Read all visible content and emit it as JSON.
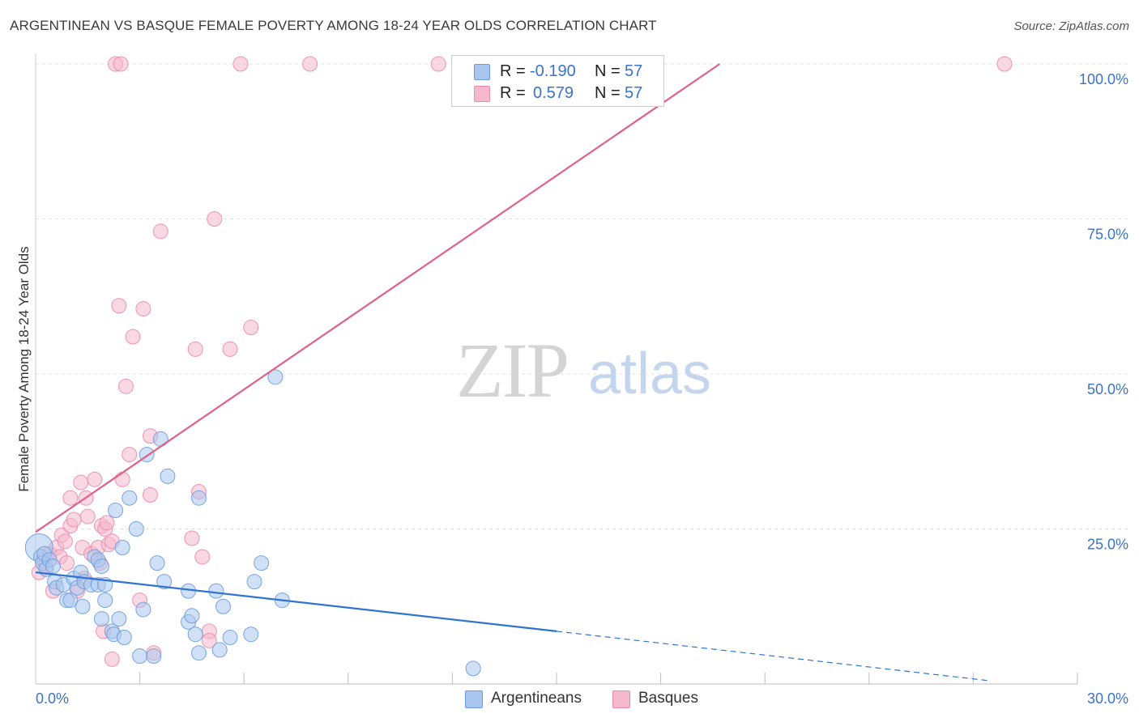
{
  "title": "ARGENTINEAN VS BASQUE FEMALE POVERTY AMONG 18-24 YEAR OLDS CORRELATION CHART",
  "source": "Source: ZipAtlas.com",
  "watermark": {
    "zip": "ZIP",
    "atlas": "atlas"
  },
  "legend": {
    "rows": [
      {
        "r_label": "R =",
        "r_value": "-0.190",
        "n_label": "N =",
        "n_value": "57",
        "color": "#a9c6ef"
      },
      {
        "r_label": "R =",
        "r_value": "0.579",
        "n_label": "N =",
        "n_value": "57",
        "color": "#f5b8cc"
      }
    ]
  },
  "bottom_legend": [
    {
      "label": "Argentineans",
      "color": "#a9c6ef"
    },
    {
      "label": "Basques",
      "color": "#f5b8cc"
    }
  ],
  "colors": {
    "argentineans_fill": "#a9c6ef",
    "argentineans_stroke": "#6a9be0",
    "argentineans_line": "#2f74d0",
    "basques_fill": "#f5b8cc",
    "basques_stroke": "#ec8aaa",
    "basques_line": "#e0608a",
    "axis_label": "#3a73c8",
    "grid": "#e3e3e3"
  },
  "chart_data": {
    "type": "scatter",
    "title": "ARGENTINEAN VS BASQUE FEMALE POVERTY AMONG 18-24 YEAR OLDS CORRELATION CHART",
    "xlabel": "",
    "ylabel": "Female Poverty Among 18-24 Year Olds",
    "xlim": [
      0,
      30
    ],
    "ylim": [
      0,
      105
    ],
    "x_tick_labels": [
      "0.0%",
      "30.0%"
    ],
    "y_ticks": [
      25,
      50,
      75,
      100
    ],
    "y_tick_labels": [
      "25.0%",
      "50.0%",
      "75.0%",
      "100.0%"
    ],
    "grid": true,
    "legend_position": "top-center",
    "series": [
      {
        "name": "Argentineans",
        "points": [
          [
            0.1,
            22.0
          ],
          [
            0.15,
            20.5
          ],
          [
            0.2,
            19.5
          ],
          [
            0.25,
            21.0
          ],
          [
            0.3,
            18.5
          ],
          [
            0.4,
            20.0
          ],
          [
            0.5,
            19.0
          ],
          [
            0.55,
            16.5
          ],
          [
            0.6,
            15.5
          ],
          [
            0.8,
            16.0
          ],
          [
            0.9,
            13.5
          ],
          [
            1.0,
            13.5
          ],
          [
            1.1,
            17.0
          ],
          [
            1.2,
            15.5
          ],
          [
            1.3,
            18.0
          ],
          [
            1.35,
            12.5
          ],
          [
            1.4,
            16.5
          ],
          [
            1.6,
            16.0
          ],
          [
            1.7,
            20.5
          ],
          [
            1.8,
            16.0
          ],
          [
            1.8,
            20.0
          ],
          [
            1.9,
            19.0
          ],
          [
            1.9,
            10.5
          ],
          [
            2.0,
            13.5
          ],
          [
            2.0,
            16.0
          ],
          [
            2.2,
            8.5
          ],
          [
            2.25,
            8.0
          ],
          [
            2.3,
            28.0
          ],
          [
            2.4,
            10.5
          ],
          [
            2.5,
            22.0
          ],
          [
            2.55,
            7.5
          ],
          [
            2.7,
            30.0
          ],
          [
            2.9,
            25.0
          ],
          [
            3.0,
            4.5
          ],
          [
            3.1,
            12.0
          ],
          [
            3.2,
            37.0
          ],
          [
            3.4,
            4.5
          ],
          [
            3.5,
            19.5
          ],
          [
            3.6,
            39.5
          ],
          [
            3.7,
            16.5
          ],
          [
            3.8,
            33.5
          ],
          [
            4.4,
            15.0
          ],
          [
            4.4,
            10.0
          ],
          [
            4.5,
            11.0
          ],
          [
            4.6,
            8.0
          ],
          [
            4.7,
            5.0
          ],
          [
            4.7,
            30.0
          ],
          [
            5.2,
            15.0
          ],
          [
            5.3,
            5.5
          ],
          [
            5.4,
            12.5
          ],
          [
            5.6,
            7.5
          ],
          [
            6.2,
            8.0
          ],
          [
            6.3,
            16.5
          ],
          [
            6.5,
            19.5
          ],
          [
            6.9,
            49.5
          ],
          [
            7.1,
            13.5
          ],
          [
            12.6,
            2.5
          ]
        ]
      },
      {
        "name": "Basques",
        "points": [
          [
            0.1,
            18.0
          ],
          [
            0.2,
            20.0
          ],
          [
            0.3,
            19.0
          ],
          [
            0.4,
            21.0
          ],
          [
            0.5,
            15.0
          ],
          [
            0.6,
            22.0
          ],
          [
            0.7,
            20.5
          ],
          [
            0.75,
            24.0
          ],
          [
            0.85,
            23.0
          ],
          [
            0.9,
            19.5
          ],
          [
            1.0,
            25.5
          ],
          [
            1.0,
            30.0
          ],
          [
            1.1,
            26.5
          ],
          [
            1.2,
            15.0
          ],
          [
            1.3,
            32.5
          ],
          [
            1.35,
            22.0
          ],
          [
            1.4,
            17.0
          ],
          [
            1.45,
            30.0
          ],
          [
            1.5,
            27.0
          ],
          [
            1.6,
            21.0
          ],
          [
            1.7,
            33.0
          ],
          [
            1.8,
            22.0
          ],
          [
            1.85,
            19.5
          ],
          [
            1.9,
            25.5
          ],
          [
            1.95,
            8.5
          ],
          [
            2.0,
            25.0
          ],
          [
            2.05,
            26.0
          ],
          [
            2.1,
            22.5
          ],
          [
            2.2,
            23.0
          ],
          [
            2.2,
            4.0
          ],
          [
            2.3,
            100.0
          ],
          [
            2.4,
            61.0
          ],
          [
            2.45,
            100.0
          ],
          [
            2.5,
            33.0
          ],
          [
            2.6,
            48.0
          ],
          [
            2.7,
            37.0
          ],
          [
            2.8,
            56.0
          ],
          [
            3.0,
            13.5
          ],
          [
            3.1,
            60.5
          ],
          [
            3.3,
            40.0
          ],
          [
            3.3,
            30.5
          ],
          [
            3.4,
            5.0
          ],
          [
            3.6,
            73.0
          ],
          [
            4.5,
            23.5
          ],
          [
            4.6,
            54.0
          ],
          [
            4.7,
            31.0
          ],
          [
            4.8,
            20.5
          ],
          [
            5.0,
            8.5
          ],
          [
            5.0,
            7.0
          ],
          [
            5.15,
            75.0
          ],
          [
            5.6,
            54.0
          ],
          [
            5.9,
            100.0
          ],
          [
            6.2,
            57.5
          ],
          [
            7.9,
            100.0
          ],
          [
            11.6,
            100.0
          ],
          [
            13.2,
            100.0
          ],
          [
            27.9,
            100.0
          ]
        ]
      }
    ],
    "trend_lines": [
      {
        "series": "Argentineans",
        "solid": [
          [
            0,
            18.0
          ],
          [
            15,
            8.5
          ]
        ],
        "dashed": [
          [
            15,
            8.5
          ],
          [
            27.5,
            0.5
          ]
        ]
      },
      {
        "series": "Basques",
        "solid": [
          [
            0,
            24.5
          ],
          [
            19.7,
            100.0
          ]
        ]
      }
    ]
  }
}
